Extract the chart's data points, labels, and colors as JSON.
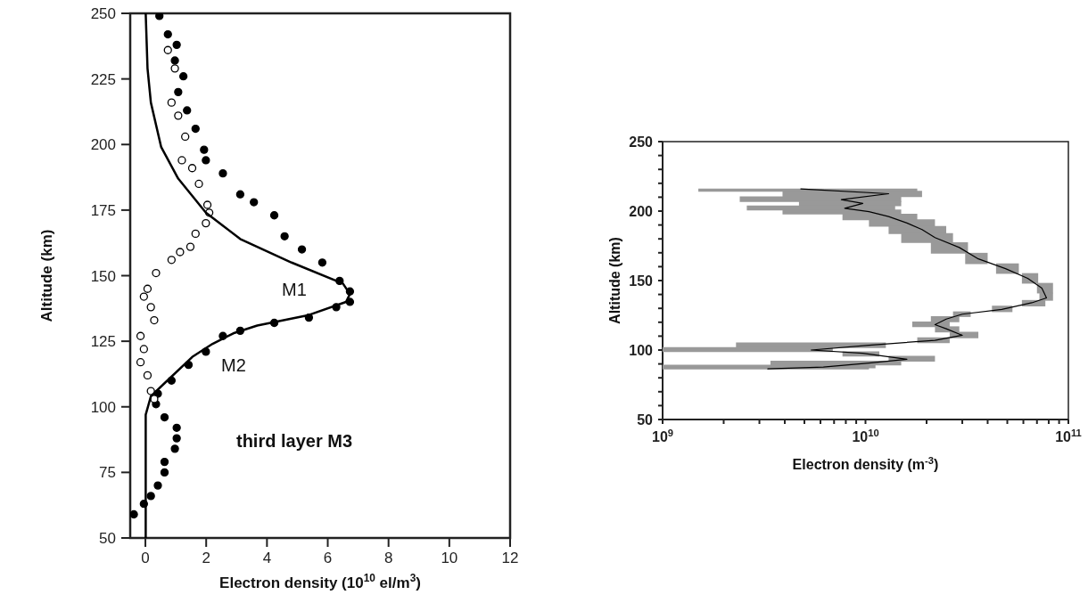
{
  "chart_data": [
    {
      "type": "scatter",
      "xlabel": "Electron density (10$^{10}$ el/m$^{3}$)",
      "ylabel": "Altitude (km)",
      "xlim": [
        -0.5,
        12
      ],
      "ylim": [
        50,
        250
      ],
      "xticks": [
        0,
        2,
        4,
        6,
        8,
        10,
        12
      ],
      "yticks": [
        50,
        75,
        100,
        125,
        150,
        175,
        200,
        225,
        250
      ],
      "marker": "circle",
      "series": [
        {
          "color": "#000000",
          "x": [
            0.46,
            0.74,
            1.03,
            0.97,
            1.25,
            1.08,
            1.37,
            1.65,
            1.93,
            1.99,
            2.55,
            3.12,
            3.57,
            4.24,
            4.58,
            5.15,
            5.82,
            6.39,
            6.73,
            6.73,
            6.28,
            5.38,
            4.24,
            3.12,
            2.55,
            1.99,
            1.42,
            0.86,
            0.41,
            0.35,
            0.63,
            1.03,
            1.03,
            0.97,
            0.63,
            0.63,
            0.41,
            0.18,
            -0.05,
            -0.38
          ],
          "values": [
            249,
            242,
            238,
            232,
            226,
            220,
            213,
            206,
            198,
            194,
            189,
            181,
            178,
            173,
            165,
            160,
            155,
            148,
            144,
            140,
            138,
            134,
            132,
            129,
            127,
            121,
            116,
            110,
            105,
            101,
            96,
            92,
            88,
            84,
            79,
            75,
            70,
            66,
            63,
            59
          ]
        },
        {
          "color": "#ffffff",
          "x": [
            0.74,
            0.97,
            0.86,
            1.08,
            1.31,
            1.2,
            1.54,
            1.76,
            2.04,
            2.1,
            1.99,
            1.65,
            1.48,
            1.14,
            0.86,
            0.35,
            0.07,
            -0.05,
            0.18,
            0.29,
            -0.16,
            -0.05,
            -0.16,
            0.07,
            0.18,
            0.29
          ],
          "values": [
            236,
            229,
            216,
            211,
            203,
            194,
            191,
            185,
            177,
            174,
            170,
            166,
            161,
            159,
            156,
            151,
            145,
            142,
            138,
            133,
            127,
            122,
            117,
            112,
            106,
            103
          ]
        },
        {
          "type": "line",
          "color": "#000000",
          "marker": "none",
          "x": [
            0.01,
            0.07,
            0.18,
            0.52,
            1.08,
            1.99,
            3.12,
            4.81,
            6.5,
            6.73,
            6.6,
            5.38,
            3.68,
            2.89,
            2.21,
            1.54,
            0.63,
            0.18,
            0.01,
            0.01
          ],
          "values": [
            250,
            229,
            216,
            199,
            187,
            174,
            164,
            155,
            147,
            143,
            140,
            135,
            131,
            128,
            124,
            119,
            109,
            104,
            97,
            50
          ]
        }
      ],
      "annotations": [
        "M1",
        "M2",
        "third layer M3"
      ]
    },
    {
      "type": "line",
      "log": "x",
      "xlabel": "Electron density (m$^{-3}$)",
      "ylabel": "Altitude (km)",
      "xlim": [
        1000000000,
        100000000000
      ],
      "ylim": [
        50,
        250
      ],
      "xticks": [
        {
          "value": 1000000000,
          "label": "10$^{9}$"
        },
        {
          "value": 2000000000,
          "label": null
        },
        {
          "value": 3000000000,
          "label": null
        },
        {
          "value": 4000000000,
          "label": null
        },
        {
          "value": 5000000000,
          "label": null
        },
        {
          "value": 6000000000,
          "label": null
        },
        {
          "value": 7000000000,
          "label": null
        },
        {
          "value": 8000000000,
          "label": null
        },
        {
          "value": 9000000000,
          "label": null
        },
        {
          "value": 10000000000,
          "label": "10$^{10}$"
        },
        {
          "value": 20000000000,
          "label": null
        },
        {
          "value": 30000000000,
          "label": null
        },
        {
          "value": 40000000000,
          "label": null
        },
        {
          "value": 50000000000,
          "label": null
        },
        {
          "value": 60000000000,
          "label": null
        },
        {
          "value": 70000000000,
          "label": null
        },
        {
          "value": 80000000000,
          "label": null
        },
        {
          "value": 90000000000,
          "label": null
        },
        {
          "value": 100000000000,
          "label": "10$^{11}$"
        }
      ],
      "yticks": [
        50,
        {
          "value": 60,
          "label": null
        },
        {
          "value": 70,
          "label": null
        },
        {
          "value": 80,
          "label": null
        },
        {
          "value": 90,
          "label": null
        },
        100,
        {
          "value": 110,
          "label": null
        },
        {
          "value": 120,
          "label": null
        },
        {
          "value": 130,
          "label": null
        },
        {
          "value": 140,
          "label": null
        },
        150,
        {
          "value": 160,
          "label": null
        },
        {
          "value": 170,
          "label": null
        },
        {
          "value": 180,
          "label": null
        },
        {
          "value": 190,
          "label": null
        },
        200,
        {
          "value": 210,
          "label": null
        },
        {
          "value": 220,
          "label": null
        },
        {
          "value": 230,
          "label": null
        },
        {
          "value": 240,
          "label": null
        },
        250
      ],
      "series": [
        {
          "color": "#000000",
          "xerrors": [
            [
              1500000000,
              18000000000
            ],
            [
              3900000000,
              19000000000
            ],
            [
              2400000000,
              15000000000
            ],
            [
              4700000000,
              15000000000
            ],
            [
              2600000000,
              14000000000
            ],
            [
              3900000000,
              15000000000
            ],
            [
              7700000000,
              18000000000
            ],
            [
              10400000000,
              22000000000
            ],
            [
              13000000000,
              25000000000
            ],
            [
              15000000000,
              27000000000
            ],
            [
              21000000000,
              32000000000
            ],
            [
              31000000000,
              40000000000
            ],
            [
              44000000000,
              57000000000
            ],
            [
              59000000000,
              71000000000
            ],
            [
              70000000000,
              84000000000
            ],
            [
              72000000000,
              84000000000
            ],
            [
              59000000000,
              77000000000
            ],
            [
              42000000000,
              53000000000
            ],
            [
              27000000000,
              33000000000
            ],
            [
              21000000000,
              29000000000
            ],
            [
              17000000000,
              26000000000
            ],
            [
              22000000000,
              29000000000
            ],
            [
              26000000000,
              36000000000
            ],
            [
              18000000000,
              26000000000
            ],
            [
              2300000000,
              12600000000
            ],
            [
              1000000000,
              6900000000
            ],
            [
              7700000000,
              11700000000
            ],
            [
              13000000000,
              22000000000
            ],
            [
              3400000000,
              15000000000
            ],
            [
              1000000000,
              11200000000
            ],
            [
              1000000000,
              10400000000
            ]
          ],
          "values": [
            216,
            212.5,
            208.3,
            205.5,
            202,
            199.6,
            196.1,
            191.4,
            186.7,
            180.9,
            173.8,
            165.6,
            158.6,
            151.6,
            144.5,
            137.5,
            134,
            129.3,
            125.8,
            122.3,
            118.3,
            115.3,
            110.6,
            107,
            103.5,
            100,
            97.7,
            93.4,
            90.6,
            87.8,
            86.4
          ],
          "x": [
            4800000000,
            13000000000,
            7600000000,
            9700000000,
            7900000000,
            10400000000,
            13000000000,
            16000000000,
            19000000000,
            22000000000,
            29000000000,
            36000000000,
            49000000000,
            63000000000,
            74000000000,
            78000000000,
            66000000000,
            47000000000,
            30000000000,
            25000000000,
            22000000000,
            25000000000,
            30000000000,
            22000000000,
            10400000000,
            5400000000,
            9700000000,
            16000000000,
            10400000000,
            6200000000,
            3300000000
          ]
        }
      ]
    }
  ]
}
